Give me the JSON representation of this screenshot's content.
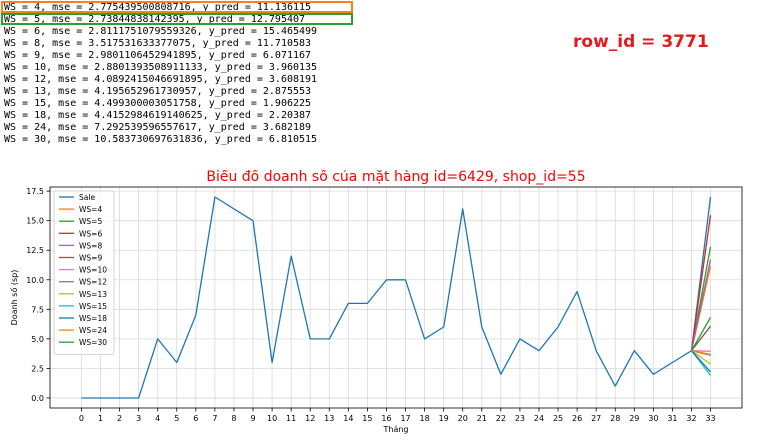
{
  "log_lines": [
    "WS = 4, mse = 2.775439500808716, y_pred = 11.136115",
    "WS = 5, mse = 2.73844838142395, y_pred = 12.795407",
    "WS = 6, mse = 2.8111751079559326, y_pred = 15.465499",
    "WS = 8, mse = 3.517531633377075, y_pred = 11.710583",
    "WS = 9, mse = 2.9801106452941895, y_pred = 6.071167",
    "WS = 10, mse = 2.8801393508911133, y_pred = 3.960135",
    "WS = 12, mse = 4.0892415046691895, y_pred = 3.608191",
    "WS = 13, mse = 4.195652961730957, y_pred = 2.875553",
    "WS = 15, mse = 4.499300003051758, y_pred = 1.906225",
    "WS = 18, mse = 4.4152984619140625, y_pred = 2.20387",
    "WS = 24, mse = 7.292539596557617, y_pred = 3.682189",
    "WS = 30, mse = 10.583730697631836, y_pred = 6.810515"
  ],
  "highlights": [
    {
      "line": 0,
      "color": "#f58220"
    },
    {
      "line": 1,
      "color": "#2ca02c"
    }
  ],
  "row_id_label": "row_id = 3771",
  "row_id_color": "#e31a1c",
  "chart_data": {
    "type": "line",
    "title": "Biểu đồ doanh số của mặt hàng id=6429, shop_id=55",
    "title_color": "#ff0000",
    "xlabel": "Tháng",
    "ylabel": "Doanh số (sp)",
    "x": [
      0,
      1,
      2,
      3,
      4,
      5,
      6,
      7,
      8,
      9,
      10,
      11,
      12,
      13,
      14,
      15,
      16,
      17,
      18,
      19,
      20,
      21,
      22,
      23,
      24,
      25,
      26,
      27,
      28,
      29,
      30,
      31,
      32,
      33
    ],
    "xlim": [
      -1.65,
      34.65
    ],
    "ylim": [
      -0.85,
      17.85
    ],
    "yticks": [
      0.0,
      2.5,
      5.0,
      7.5,
      10.0,
      12.5,
      15.0,
      17.5
    ],
    "grid": true,
    "legend_position": "upper-left",
    "series": [
      {
        "name": "Sale",
        "color": "#1f77b4",
        "points": [
          [
            0,
            0
          ],
          [
            1,
            0
          ],
          [
            2,
            0
          ],
          [
            3,
            0
          ],
          [
            4,
            5
          ],
          [
            5,
            3
          ],
          [
            6,
            7
          ],
          [
            7,
            17
          ],
          [
            8,
            16
          ],
          [
            9,
            15
          ],
          [
            10,
            3
          ],
          [
            11,
            12
          ],
          [
            12,
            5
          ],
          [
            13,
            5
          ],
          [
            14,
            8
          ],
          [
            15,
            8
          ],
          [
            16,
            10
          ],
          [
            17,
            10
          ],
          [
            18,
            5
          ],
          [
            19,
            6
          ],
          [
            20,
            16
          ],
          [
            21,
            6
          ],
          [
            22,
            2
          ],
          [
            23,
            5
          ],
          [
            24,
            4
          ],
          [
            25,
            6
          ],
          [
            26,
            9
          ],
          [
            27,
            4
          ],
          [
            28,
            1
          ],
          [
            29,
            4
          ],
          [
            30,
            2
          ],
          [
            31,
            3
          ],
          [
            32,
            4
          ],
          [
            33,
            17
          ]
        ]
      },
      {
        "name": "WS=4",
        "color": "#ff7f0e",
        "points": [
          [
            32,
            4
          ],
          [
            33,
            11.136115
          ]
        ]
      },
      {
        "name": "WS=5",
        "color": "#2ca02c",
        "points": [
          [
            32,
            4
          ],
          [
            33,
            12.795407
          ]
        ]
      },
      {
        "name": "WS=6",
        "color": "#d62728",
        "points": [
          [
            32,
            4
          ],
          [
            33,
            15.465499
          ]
        ]
      },
      {
        "name": "WS=8",
        "color": "#9467bd",
        "points": [
          [
            32,
            4
          ],
          [
            33,
            11.710583
          ]
        ]
      },
      {
        "name": "WS=9",
        "color": "#8c564b",
        "points": [
          [
            32,
            4
          ],
          [
            33,
            6.071167
          ]
        ]
      },
      {
        "name": "WS=10",
        "color": "#e377c2",
        "points": [
          [
            32,
            4
          ],
          [
            33,
            3.960135
          ]
        ]
      },
      {
        "name": "WS=12",
        "color": "#7f7f7f",
        "points": [
          [
            32,
            4
          ],
          [
            33,
            3.608191
          ]
        ]
      },
      {
        "name": "WS=13",
        "color": "#bcbd22",
        "points": [
          [
            32,
            4
          ],
          [
            33,
            2.875553
          ]
        ]
      },
      {
        "name": "WS=15",
        "color": "#17becf",
        "points": [
          [
            32,
            4
          ],
          [
            33,
            1.906225
          ]
        ]
      },
      {
        "name": "WS=18",
        "color": "#1f77b4",
        "points": [
          [
            32,
            4
          ],
          [
            33,
            2.20387
          ]
        ]
      },
      {
        "name": "WS=24",
        "color": "#ff7f0e",
        "points": [
          [
            32,
            4
          ],
          [
            33,
            3.682189
          ]
        ]
      },
      {
        "name": "WS=30",
        "color": "#2ca02c",
        "points": [
          [
            32,
            4
          ],
          [
            33,
            6.810515
          ]
        ]
      }
    ]
  }
}
